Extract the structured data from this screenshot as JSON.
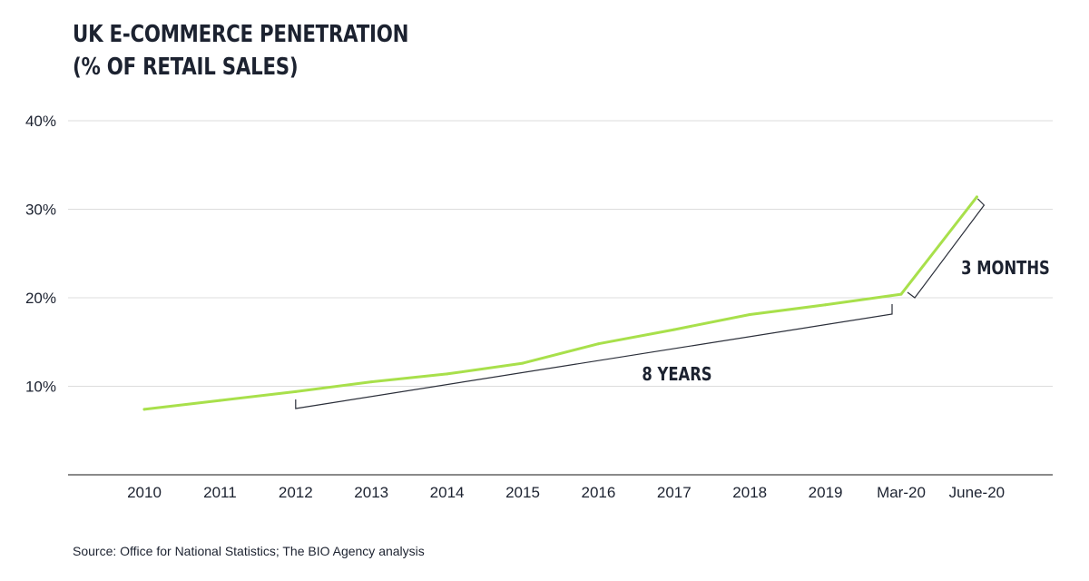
{
  "title_line1": "UK E-COMMERCE PENETRATION",
  "title_line2": "(% OF RETAIL SALES)",
  "source": "Source: Office for National Statistics; The BIO Agency analysis",
  "colors": {
    "line": "#a8e04b",
    "text": "#1c2230",
    "grid": "#dddddd",
    "axis": "#444444",
    "bracket": "#2b2f3a"
  },
  "chart_data": {
    "type": "line",
    "categories": [
      "2010",
      "2011",
      "2012",
      "2013",
      "2014",
      "2015",
      "2016",
      "2017",
      "2018",
      "2019",
      "Mar-20",
      "June-20"
    ],
    "series": [
      {
        "values": [
          7.4,
          8.4,
          9.4,
          10.5,
          11.4,
          12.6,
          14.8,
          16.4,
          18.1,
          19.2,
          20.4,
          31.4
        ]
      }
    ],
    "yticks": [
      10,
      20,
      30,
      40
    ],
    "ytick_labels": [
      "10%",
      "20%",
      "30%",
      "40%"
    ],
    "ylim": [
      0,
      40
    ],
    "grid": true,
    "annotations": [
      {
        "text": "8 YEARS",
        "from": "2012",
        "to": "Mar-20"
      },
      {
        "text": "3 MONTHS",
        "from": "Mar-20",
        "to": "June-20"
      }
    ]
  }
}
